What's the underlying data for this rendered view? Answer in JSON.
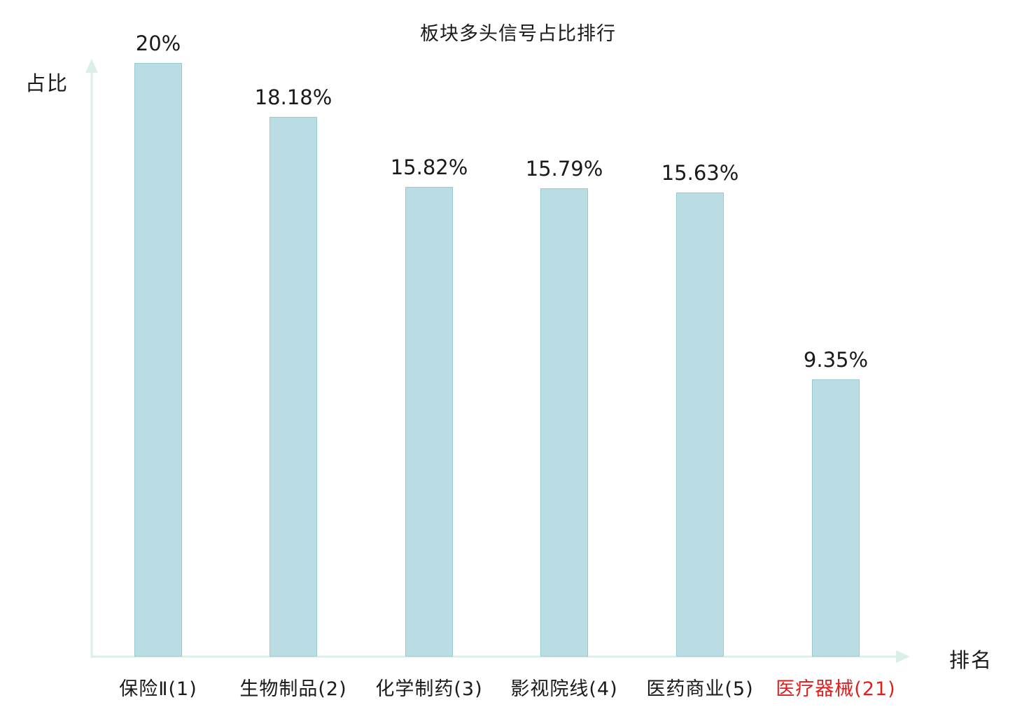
{
  "chart_data": {
    "type": "bar",
    "title": "板块多头信号占比排行",
    "xlabel": "排名",
    "ylabel": "占比",
    "ymax": 20,
    "grid": false,
    "legend_position": "none",
    "categories": [
      "保险Ⅱ(1)",
      "生物制品(2)",
      "化学制药(3)",
      "影视院线(4)",
      "医药商业(5)",
      "医疗器械(21)"
    ],
    "values": [
      20,
      18.18,
      15.82,
      15.79,
      15.63,
      9.35
    ],
    "value_labels": [
      "20%",
      "18.18%",
      "15.82%",
      "15.79%",
      "15.63%",
      "9.35%"
    ],
    "category_colors": [
      "#1a1a1a",
      "#1a1a1a",
      "#1a1a1a",
      "#1a1a1a",
      "#1a1a1a",
      "#e01f1f"
    ],
    "highlight_color": "#e01f1f",
    "bar_fill": "#b9dde2",
    "bar_border": "#97cad2",
    "axis_color": "#d9efe8",
    "text_color": "#1a1a1a"
  }
}
